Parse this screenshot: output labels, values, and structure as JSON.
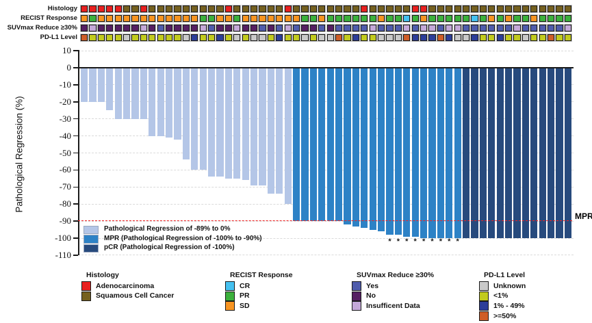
{
  "figure": {
    "y_axis": {
      "title": "Pathological Regression (%)",
      "ticks": [
        10,
        0,
        -10,
        -20,
        -30,
        -40,
        -50,
        -60,
        -70,
        -80,
        -90,
        -100,
        -110
      ]
    },
    "annotation_rows": [
      {
        "key": "histology",
        "label": "Histology"
      },
      {
        "key": "recist",
        "label": "RECIST Response"
      },
      {
        "key": "suvmax",
        "label": "SUVmax Reduce ≥30%"
      },
      {
        "key": "pdl1",
        "label": "PD-L1 Level"
      }
    ],
    "mpr_line": {
      "label": "MPR",
      "value": -90,
      "color": "#f02424"
    },
    "inplot_legend": [
      {
        "label": "Pathological Regression of -89% to 0%",
        "color": "#b4c6e7"
      },
      {
        "label": "MPR (Pathological Regression of -100% to -90%)",
        "color": "#2d82c6"
      },
      {
        "label": "pCR (Pathological Regression of -100%)",
        "color": "#274a7d"
      }
    ],
    "legend_groups": [
      {
        "title": "Histology",
        "items": [
          {
            "label": "Adenocarcinoma",
            "color": "#e8201f"
          },
          {
            "label": "Squamous Cell Cancer",
            "color": "#75601f"
          }
        ]
      },
      {
        "title": "RECIST Response",
        "items": [
          {
            "label": "CR",
            "color": "#45c1f0"
          },
          {
            "label": "PR",
            "color": "#3cb13c"
          },
          {
            "label": "SD",
            "color": "#f79421"
          }
        ]
      },
      {
        "title": "SUVmax Reduce ≥30%",
        "items": [
          {
            "label": "Yes",
            "color": "#4f5cac"
          },
          {
            "label": "No",
            "color": "#561f62"
          },
          {
            "label": "Insufficent Data",
            "color": "#c4a8d8"
          }
        ]
      },
      {
        "title": "PD-L1 Level",
        "items": [
          {
            "label": "Unknown",
            "color": "#c9c9c9"
          },
          {
            "label": "<1%",
            "color": "#c2cb1e"
          },
          {
            "label": "1% - 49%",
            "color": "#2d3e99"
          },
          {
            "label": ">=50%",
            "color": "#cf5e28"
          }
        ]
      }
    ]
  },
  "palette": {
    "bar_regression": "#b4c6e7",
    "bar_mpr": "#2d82c6",
    "bar_pcr": "#274a7d",
    "histology": {
      "A": "#e8201f",
      "S": "#75601f"
    },
    "recist": {
      "CR": "#45c1f0",
      "PR": "#3cb13c",
      "SD": "#f79421"
    },
    "suvmax": {
      "Y": "#4f5cac",
      "N": "#561f62",
      "I": "#c4a8d8"
    },
    "pdl1": {
      "U": "#c9c9c9",
      "LT1": "#c2cb1e",
      "P1_49": "#2d3e99",
      "GE50": "#cf5e28"
    }
  },
  "chart_data": {
    "type": "bar",
    "title": "",
    "xlabel": "",
    "ylabel": "Pathological Regression (%)",
    "ylim": [
      -110,
      10
    ],
    "n_patients": 58,
    "values": [
      -20,
      -20,
      -20,
      -25,
      -30,
      -30,
      -30,
      -30,
      -40,
      -40,
      -41,
      -42,
      -54,
      -60,
      -60,
      -64,
      -64,
      -65,
      -65,
      -66,
      -69,
      -69,
      -74,
      -74,
      -80,
      -90,
      -90,
      -90,
      -90,
      -90,
      -90,
      -92,
      -93,
      -94,
      -95,
      -96,
      -98,
      -98,
      -99,
      -99,
      -100,
      -100,
      -100,
      -100,
      -100,
      -100,
      -100,
      -100,
      -100,
      -100,
      -100,
      -100,
      -100,
      -100,
      -100,
      -100,
      -100,
      -100
    ],
    "groups": [
      "regression",
      "regression",
      "regression",
      "regression",
      "regression",
      "regression",
      "regression",
      "regression",
      "regression",
      "regression",
      "regression",
      "regression",
      "regression",
      "regression",
      "regression",
      "regression",
      "regression",
      "regression",
      "regression",
      "regression",
      "regression",
      "regression",
      "regression",
      "regression",
      "regression",
      "mpr",
      "mpr",
      "mpr",
      "mpr",
      "mpr",
      "mpr",
      "mpr",
      "mpr",
      "mpr",
      "mpr",
      "mpr",
      "mpr",
      "mpr",
      "mpr",
      "mpr",
      "mpr",
      "mpr",
      "mpr",
      "mpr",
      "mpr",
      "pcr",
      "pcr",
      "pcr",
      "pcr",
      "pcr",
      "pcr",
      "pcr",
      "pcr",
      "pcr",
      "pcr",
      "pcr",
      "pcr",
      "pcr"
    ],
    "asterisk_columns": [
      37,
      38,
      39,
      40,
      41,
      42,
      43,
      44,
      45
    ],
    "reference_line": {
      "value": -90,
      "label": "MPR"
    },
    "annotations": {
      "histology": [
        "A",
        "A",
        "A",
        "A",
        "A",
        "S",
        "S",
        "A",
        "S",
        "S",
        "S",
        "S",
        "S",
        "S",
        "S",
        "S",
        "S",
        "A",
        "S",
        "S",
        "S",
        "S",
        "S",
        "S",
        "A",
        "S",
        "S",
        "S",
        "S",
        "S",
        "S",
        "S",
        "S",
        "A",
        "S",
        "S",
        "S",
        "S",
        "S",
        "A",
        "A",
        "S",
        "S",
        "S",
        "S",
        "S",
        "S",
        "S",
        "S",
        "S",
        "S",
        "S",
        "S",
        "S",
        "S",
        "S",
        "S",
        "S"
      ],
      "recist": [
        "SD",
        "PR",
        "SD",
        "SD",
        "SD",
        "SD",
        "SD",
        "SD",
        "SD",
        "SD",
        "SD",
        "SD",
        "SD",
        "SD",
        "PR",
        "PR",
        "SD",
        "SD",
        "PR",
        "SD",
        "SD",
        "SD",
        "SD",
        "SD",
        "SD",
        "SD",
        "PR",
        "PR",
        "SD",
        "PR",
        "PR",
        "PR",
        "PR",
        "PR",
        "PR",
        "SD",
        "PR",
        "PR",
        "CR",
        "PR",
        "SD",
        "PR",
        "PR",
        "PR",
        "PR",
        "PR",
        "CR",
        "PR",
        "SD",
        "PR",
        "SD",
        "PR",
        "PR",
        "SD",
        "PR",
        "PR",
        "PR",
        "PR"
      ],
      "suvmax": [
        "N",
        "I",
        "N",
        "N",
        "N",
        "N",
        "N",
        "I",
        "N",
        "Y",
        "N",
        "N",
        "N",
        "N",
        "I",
        "Y",
        "N",
        "N",
        "I",
        "N",
        "N",
        "Y",
        "N",
        "Y",
        "I",
        "Y",
        "N",
        "N",
        "Y",
        "N",
        "Y",
        "Y",
        "Y",
        "Y",
        "I",
        "Y",
        "Y",
        "Y",
        "I",
        "Y",
        "I",
        "I",
        "Y",
        "I",
        "I",
        "Y",
        "Y",
        "Y",
        "Y",
        "Y",
        "Y",
        "I",
        "Y",
        "Y",
        "Y",
        "Y",
        "Y",
        "I"
      ],
      "pdl1": [
        "GE50",
        "LT1",
        "LT1",
        "LT1",
        "LT1",
        "U",
        "LT1",
        "LT1",
        "LT1",
        "LT1",
        "LT1",
        "LT1",
        "U",
        "P1_49",
        "LT1",
        "LT1",
        "P1_49",
        "LT1",
        "U",
        "LT1",
        "U",
        "U",
        "LT1",
        "P1_49",
        "LT1",
        "LT1",
        "U",
        "LT1",
        "U",
        "U",
        "GE50",
        "LT1",
        "P1_49",
        "LT1",
        "LT1",
        "U",
        "U",
        "U",
        "GE50",
        "P1_49",
        "P1_49",
        "P1_49",
        "GE50",
        "P1_49",
        "U",
        "U",
        "P1_49",
        "LT1",
        "LT1",
        "P1_49",
        "LT1",
        "LT1",
        "U",
        "LT1",
        "LT1",
        "GE50",
        "LT1",
        "LT1"
      ]
    }
  }
}
